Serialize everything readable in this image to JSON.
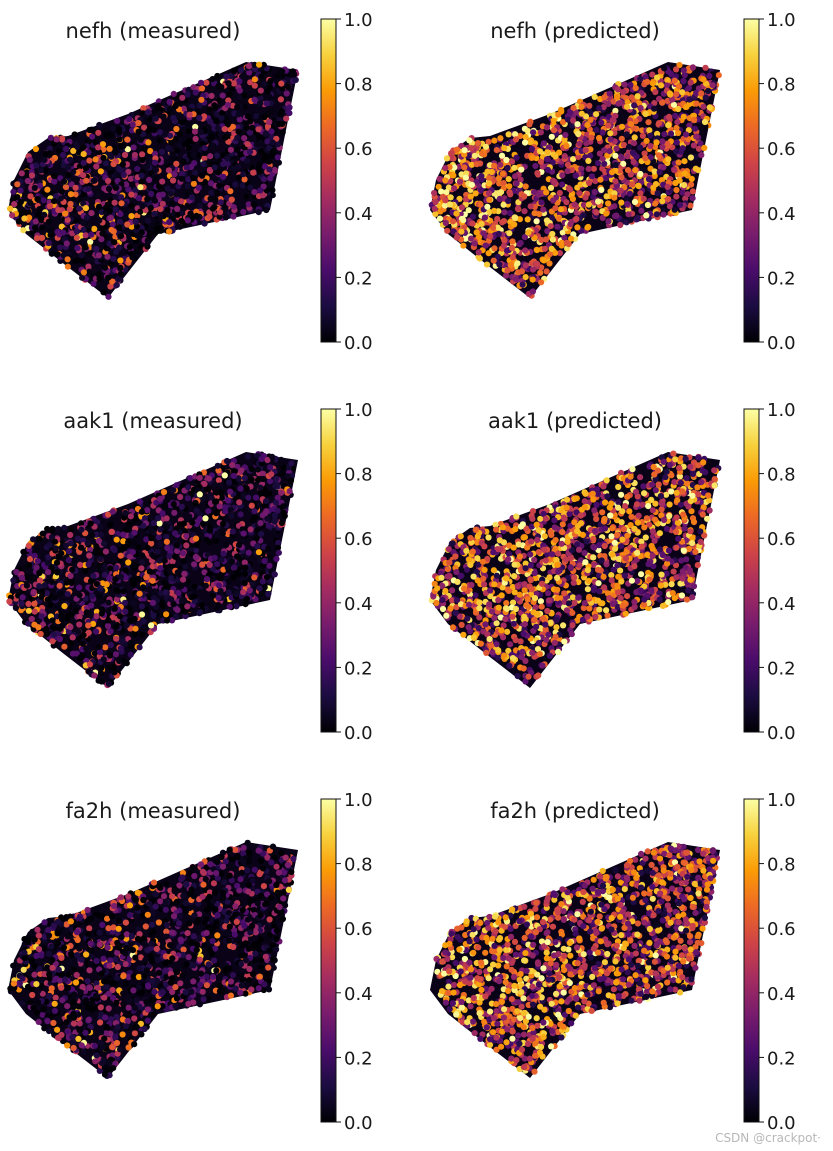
{
  "chart_data": [
    {
      "type": "scatter",
      "title": "nefh (measured)",
      "colormap": "inferno",
      "colorbar": {
        "range": [
          0,
          1
        ],
        "ticks": [
          "0.0",
          "0.2",
          "0.4",
          "0.6",
          "0.8",
          "1.0"
        ]
      },
      "mean_value": 0.1,
      "hot_region": "left",
      "seed": 11
    },
    {
      "type": "scatter",
      "title": "nefh (predicted)",
      "colormap": "inferno",
      "colorbar": {
        "range": [
          0,
          1
        ],
        "ticks": [
          "0.0",
          "0.2",
          "0.4",
          "0.6",
          "0.8",
          "1.0"
        ]
      },
      "mean_value": 0.5,
      "hot_region": "left",
      "seed": 12
    },
    {
      "type": "scatter",
      "title": "aak1 (measured)",
      "colormap": "inferno",
      "colorbar": {
        "range": [
          0,
          1
        ],
        "ticks": [
          "0.0",
          "0.2",
          "0.4",
          "0.6",
          "0.8",
          "1.0"
        ]
      },
      "mean_value": 0.22,
      "hot_region": "left",
      "seed": 21
    },
    {
      "type": "scatter",
      "title": "aak1 (predicted)",
      "colormap": "inferno",
      "colorbar": {
        "range": [
          0,
          1
        ],
        "ticks": [
          "0.0",
          "0.2",
          "0.4",
          "0.6",
          "0.8",
          "1.0"
        ]
      },
      "mean_value": 0.62,
      "hot_region": "center",
      "seed": 22
    },
    {
      "type": "scatter",
      "title": "fa2h (measured)",
      "colormap": "inferno",
      "colorbar": {
        "range": [
          0,
          1
        ],
        "ticks": [
          "0.0",
          "0.2",
          "0.4",
          "0.6",
          "0.8",
          "1.0"
        ]
      },
      "mean_value": 0.12,
      "hot_region": "left",
      "seed": 31
    },
    {
      "type": "scatter",
      "title": "fa2h (predicted)",
      "colormap": "inferno",
      "colorbar": {
        "range": [
          0,
          1
        ],
        "ticks": [
          "0.0",
          "0.2",
          "0.4",
          "0.6",
          "0.8",
          "1.0"
        ]
      },
      "mean_value": 0.5,
      "hot_region": "left",
      "seed": 32
    }
  ],
  "colors": {
    "inferno_stops": [
      "#000004",
      "#1b0c41",
      "#4a0c6b",
      "#781c6d",
      "#a52c60",
      "#cf4446",
      "#ed6925",
      "#fb9b06",
      "#f7d13d",
      "#fcffa4"
    ]
  },
  "watermark": "CSDN @crackpot·"
}
